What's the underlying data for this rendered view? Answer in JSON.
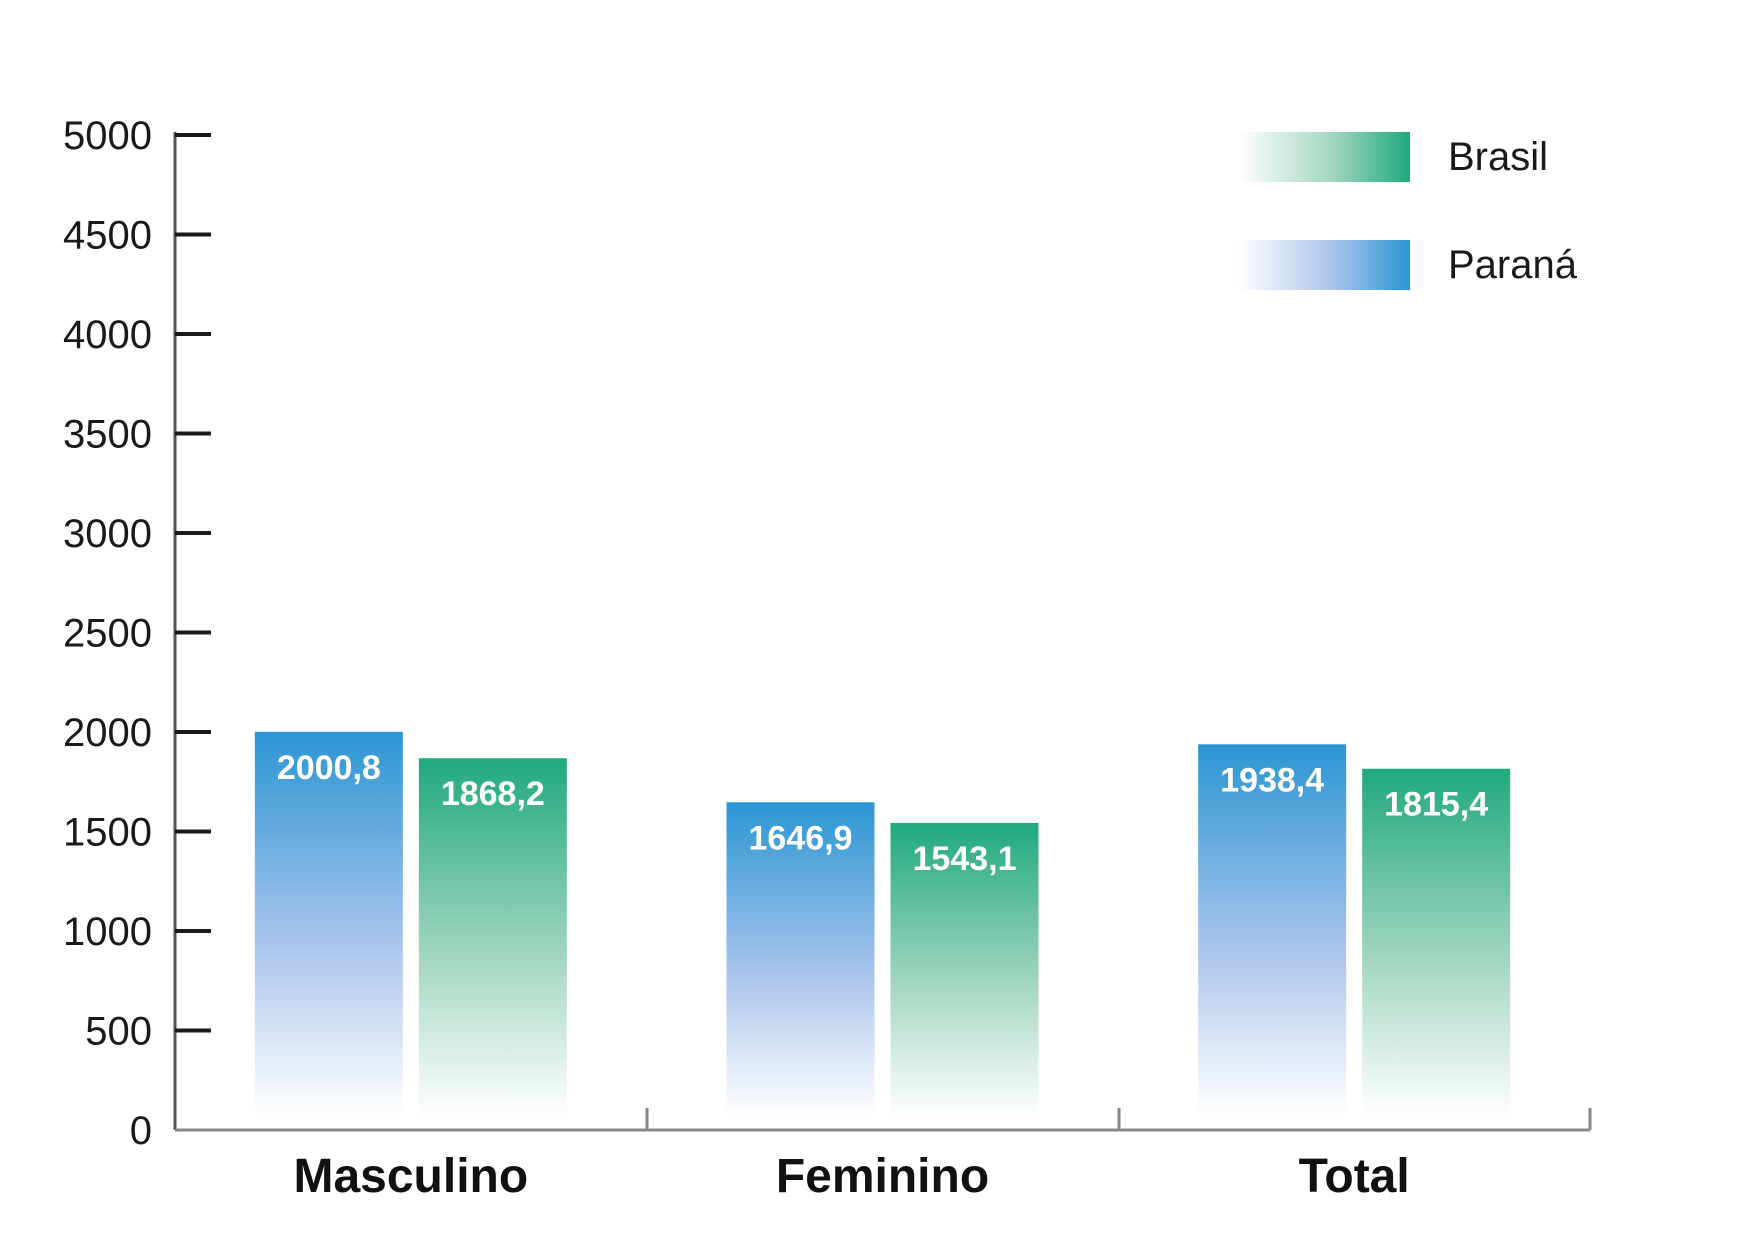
{
  "chart_data": {
    "type": "bar",
    "categories": [
      "Masculino",
      "Feminino",
      "Total"
    ],
    "series": [
      {
        "name": "Paraná",
        "color": "#2b96d3",
        "values": [
          2000.8,
          1646.9,
          1938.4
        ],
        "labels": [
          "2000,8",
          "1646,9",
          "1938,4"
        ]
      },
      {
        "name": "Brasil",
        "color": "#1fa97f",
        "values": [
          1868.2,
          1543.1,
          1815.4
        ],
        "labels": [
          "1868,2",
          "1543,1",
          "1815,4"
        ]
      }
    ],
    "legend_order": [
      "Brasil",
      "Paraná"
    ],
    "ylim": [
      0,
      5000
    ],
    "yticks": [
      0,
      500,
      1000,
      1500,
      2000,
      2500,
      3000,
      3500,
      4000,
      4500,
      5000
    ],
    "legend_position": "top-right",
    "title": "",
    "xlabel": "",
    "ylabel": ""
  }
}
